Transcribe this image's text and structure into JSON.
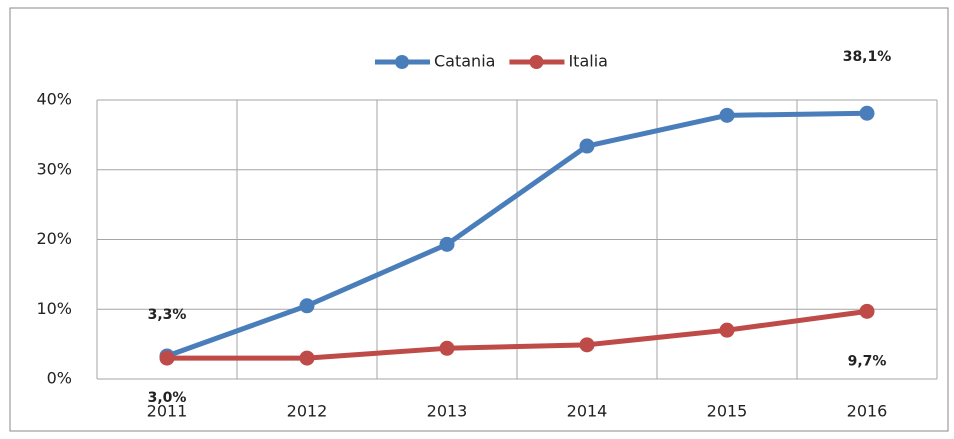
{
  "chart_data": {
    "type": "line",
    "categories": [
      "2011",
      "2012",
      "2013",
      "2014",
      "2015",
      "2016"
    ],
    "series": [
      {
        "name": "Catania",
        "color": "#4a7ebb",
        "values": [
          3.3,
          10.5,
          19.3,
          33.4,
          37.8,
          38.1
        ],
        "value_labels": [
          "3,3%",
          null,
          null,
          null,
          null,
          "38,1%"
        ]
      },
      {
        "name": "Italia",
        "color": "#be4b48",
        "values": [
          3.0,
          3.0,
          4.4,
          4.9,
          7.0,
          9.7
        ],
        "value_labels": [
          "3,0%",
          null,
          null,
          null,
          null,
          "9,7%"
        ]
      }
    ],
    "ylim": [
      0,
      40
    ],
    "yticks": [
      {
        "value": 0,
        "label": "0%"
      },
      {
        "value": 10,
        "label": "10%"
      },
      {
        "value": 20,
        "label": "20%"
      },
      {
        "value": 30,
        "label": "30%"
      },
      {
        "value": 40,
        "label": "40%"
      }
    ],
    "grid": true,
    "legend": "top"
  }
}
